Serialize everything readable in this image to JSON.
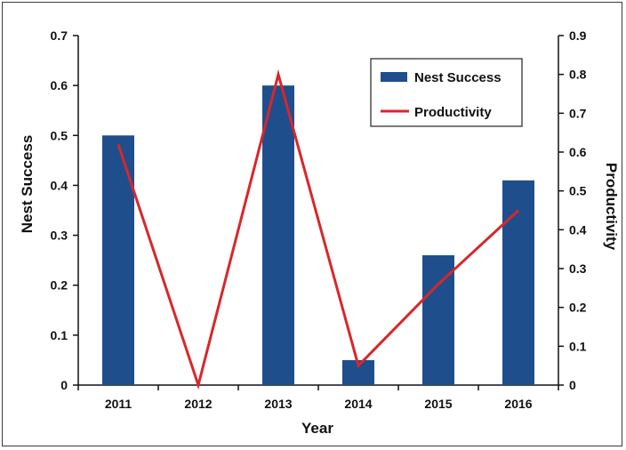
{
  "chart_data": {
    "type": "bar+line",
    "categories": [
      "2011",
      "2012",
      "2013",
      "2014",
      "2015",
      "2016"
    ],
    "series": [
      {
        "name": "Nest Success",
        "kind": "bar",
        "axis": "left",
        "color": "#1f4e8c",
        "values": [
          0.5,
          0,
          0.6,
          0.05,
          0.26,
          0.41
        ]
      },
      {
        "name": "Productivity",
        "kind": "line",
        "axis": "right",
        "color": "#d9262a",
        "values": [
          0.62,
          0,
          0.8,
          0.05,
          0.26,
          0.45
        ]
      }
    ],
    "xlabel": "Year",
    "ylabel": "Nest Success",
    "y2label": "Productivity",
    "ylim": [
      0,
      0.7
    ],
    "y2lim": [
      0,
      0.9
    ],
    "yticks": [
      "0",
      "0.1",
      "0.2",
      "0.3",
      "0.4",
      "0.5",
      "0.6",
      "0.7"
    ],
    "y2ticks": [
      "0",
      "0.1",
      "0.2",
      "0.3",
      "0.4",
      "0.5",
      "0.6",
      "0.7",
      "0.8",
      "0.9"
    ],
    "grid": false,
    "legend_position": "top-right"
  }
}
